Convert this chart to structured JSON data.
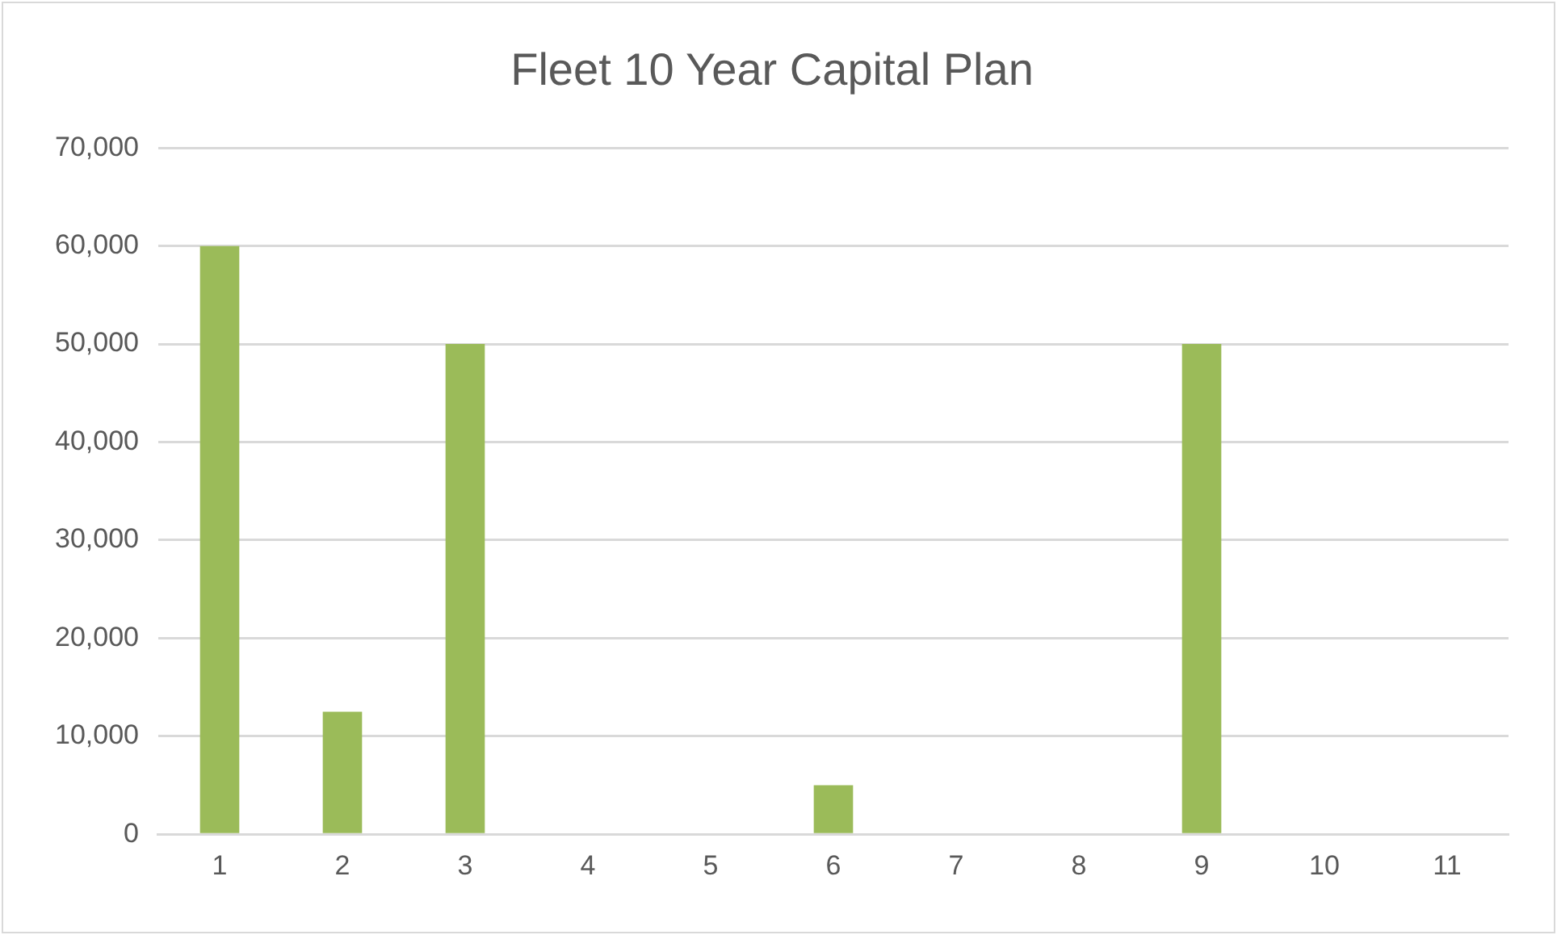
{
  "chart_data": {
    "type": "bar",
    "title": "Fleet 10 Year Capital Plan",
    "categories": [
      "1",
      "2",
      "3",
      "4",
      "5",
      "6",
      "7",
      "8",
      "9",
      "10",
      "11"
    ],
    "values": [
      60000,
      12500,
      50000,
      0,
      0,
      5000,
      0,
      0,
      50000,
      0,
      0
    ],
    "color": "#9bbb59",
    "ylim": [
      0,
      70000
    ],
    "yticks": [
      0,
      {
        "value": 10000,
        "label": "10,000"
      },
      {
        "value": 20000,
        "label": "20,000"
      },
      {
        "value": 30000,
        "label": "30,000"
      },
      {
        "value": 40000,
        "label": "40,000"
      },
      {
        "value": 50000,
        "label": "50,000"
      },
      {
        "value": 60000,
        "label": "60,000"
      },
      {
        "value": 70000,
        "label": "70,000"
      }
    ],
    "grid": "y"
  }
}
